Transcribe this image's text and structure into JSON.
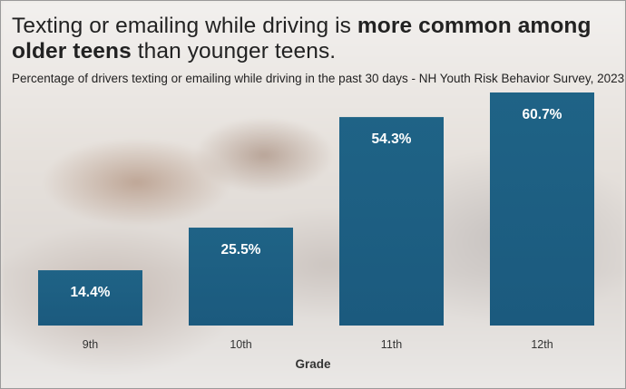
{
  "title": {
    "line1_a": "Texting or emailing while driving is ",
    "line1_b": "more common among",
    "line2_a": "older teens",
    "line2_b": " than younger teens."
  },
  "subtitle": "Percentage of drivers texting or emailing while driving in the past 30 days - NH Youth Risk Behavior Survey, 2023",
  "colors": {
    "bar": "#1b5a7e",
    "bar_top": "#1f6386",
    "label": "#ffffff",
    "axis_text": "#333333"
  },
  "chart_data": {
    "type": "bar",
    "categories": [
      "9th",
      "10th",
      "11th",
      "12th"
    ],
    "values": [
      14.4,
      25.5,
      54.3,
      60.7
    ],
    "data_labels": [
      "14.4%",
      "25.5%",
      "54.3%",
      "60.7%"
    ],
    "xlabel": "Grade",
    "ylabel": "",
    "ylim": [
      0,
      60.7
    ]
  }
}
